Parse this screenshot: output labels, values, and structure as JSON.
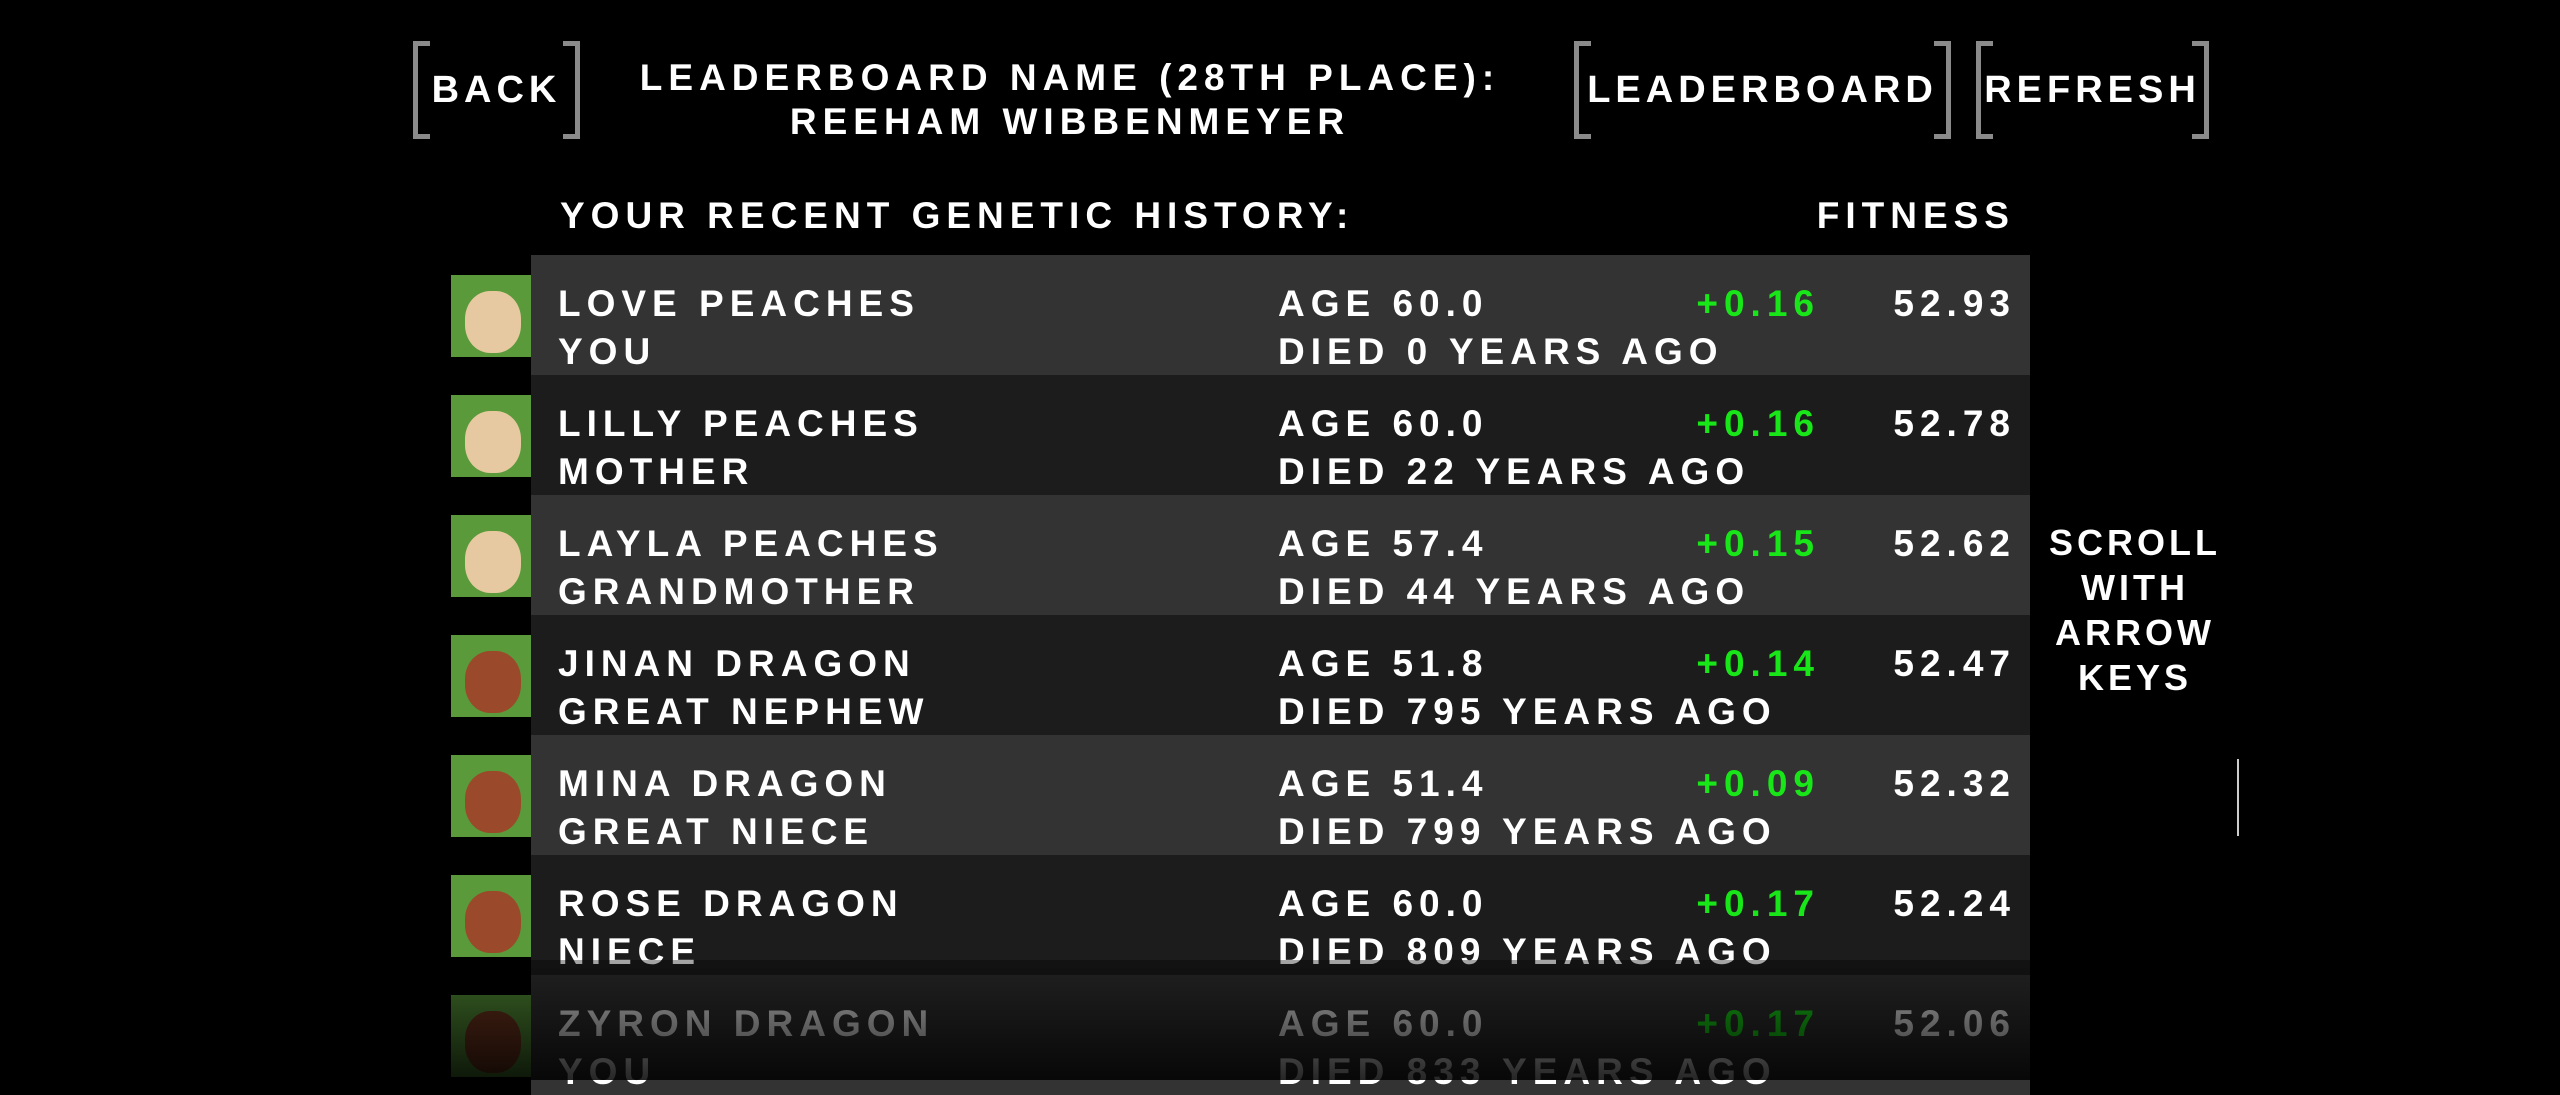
{
  "header": {
    "back_label": "BACK",
    "title_line1": "LEADERBOARD NAME (28TH PLACE):",
    "title_line2": "REEHAM WIBBENMEYER",
    "leaderboard_label": "LEADERBOARD",
    "refresh_label": "REFRESH"
  },
  "history": {
    "heading": "YOUR RECENT GENETIC HISTORY:",
    "fitness_heading": "FITNESS",
    "rows": [
      {
        "name": "LOVE PEACHES",
        "relation": "YOU",
        "age": "AGE 60.0",
        "died": "DIED 0 YEARS AGO",
        "delta": "+0.16",
        "fitness": "52.93",
        "skin": "#e6c9a0"
      },
      {
        "name": "LILLY PEACHES",
        "relation": "MOTHER",
        "age": "AGE 60.0",
        "died": "DIED 22 YEARS AGO",
        "delta": "+0.16",
        "fitness": "52.78",
        "skin": "#e6c9a0"
      },
      {
        "name": "LAYLA PEACHES",
        "relation": "GRANDMOTHER",
        "age": "AGE 57.4",
        "died": "DIED 44 YEARS AGO",
        "delta": "+0.15",
        "fitness": "52.62",
        "skin": "#e6c9a0"
      },
      {
        "name": "JINAN DRAGON",
        "relation": "GREAT NEPHEW",
        "age": "AGE 51.8",
        "died": "DIED 795 YEARS AGO",
        "delta": "+0.14",
        "fitness": "52.47",
        "skin": "#9a4a2a"
      },
      {
        "name": "MINA DRAGON",
        "relation": "GREAT NIECE",
        "age": "AGE 51.4",
        "died": "DIED 799 YEARS AGO",
        "delta": "+0.09",
        "fitness": "52.32",
        "skin": "#9a4a2a"
      },
      {
        "name": "ROSE DRAGON",
        "relation": "NIECE",
        "age": "AGE 60.0",
        "died": "DIED 809 YEARS AGO",
        "delta": "+0.17",
        "fitness": "52.24",
        "skin": "#9a4a2a"
      },
      {
        "name": "ZYRON DRAGON",
        "relation": "YOU",
        "age": "AGE 60.0",
        "died": "DIED 833 YEARS AGO",
        "delta": "+0.17",
        "fitness": "52.06",
        "skin": "#7a3a20"
      }
    ]
  },
  "scroll_hint": [
    "SCROLL",
    "WITH",
    "ARROW",
    "KEYS"
  ],
  "colors": {
    "row_light": "#333333",
    "row_dark": "#1c1c1c",
    "delta": "#19e619",
    "bracket": "#8a8a8a"
  }
}
